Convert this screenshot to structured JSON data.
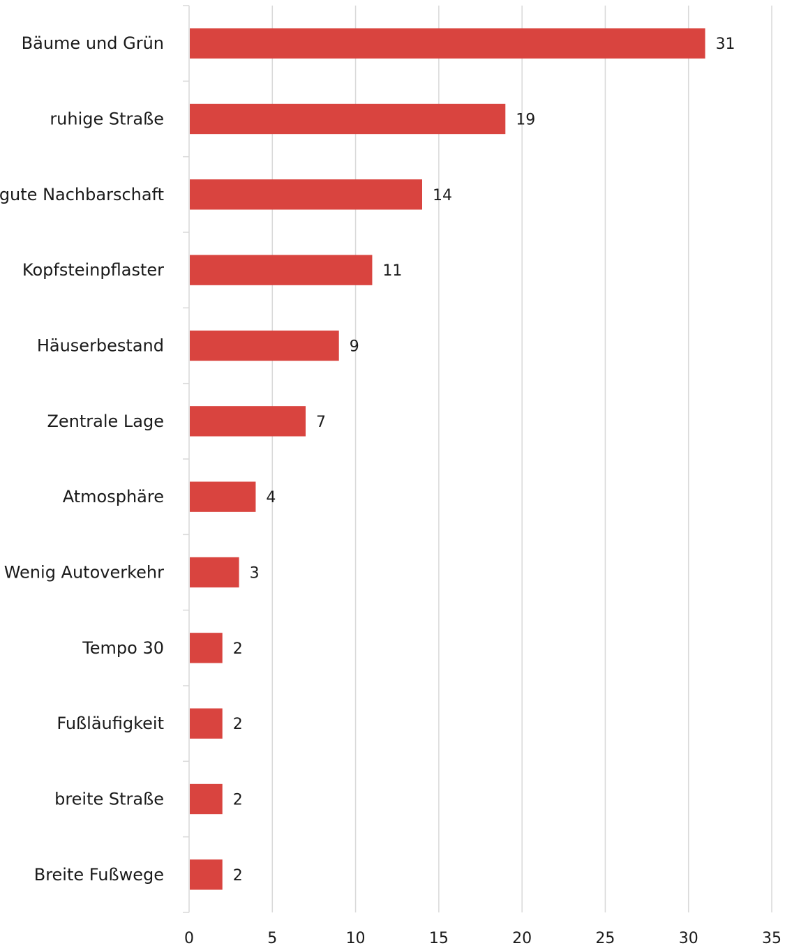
{
  "chart_data": {
    "type": "bar",
    "orientation": "horizontal",
    "categories": [
      "Bäume und Grün",
      "ruhige Straße",
      "gute Nachbarschaft",
      "Kopfsteinpflaster",
      "Häuserbestand",
      "Zentrale Lage",
      "Atmosphäre",
      "Wenig Autoverkehr",
      "Tempo 30",
      "Fußläufigkeit",
      "breite Straße",
      "Breite Fußwege"
    ],
    "values": [
      31,
      19,
      14,
      11,
      9,
      7,
      4,
      3,
      2,
      2,
      2,
      2
    ],
    "xlim": [
      0,
      35
    ],
    "xticks": [
      0,
      5,
      10,
      15,
      20,
      25,
      30,
      35
    ],
    "grid": "vertical",
    "data_labels": true,
    "bar_color": "#d9443f",
    "title": "",
    "xlabel": "",
    "ylabel": ""
  }
}
